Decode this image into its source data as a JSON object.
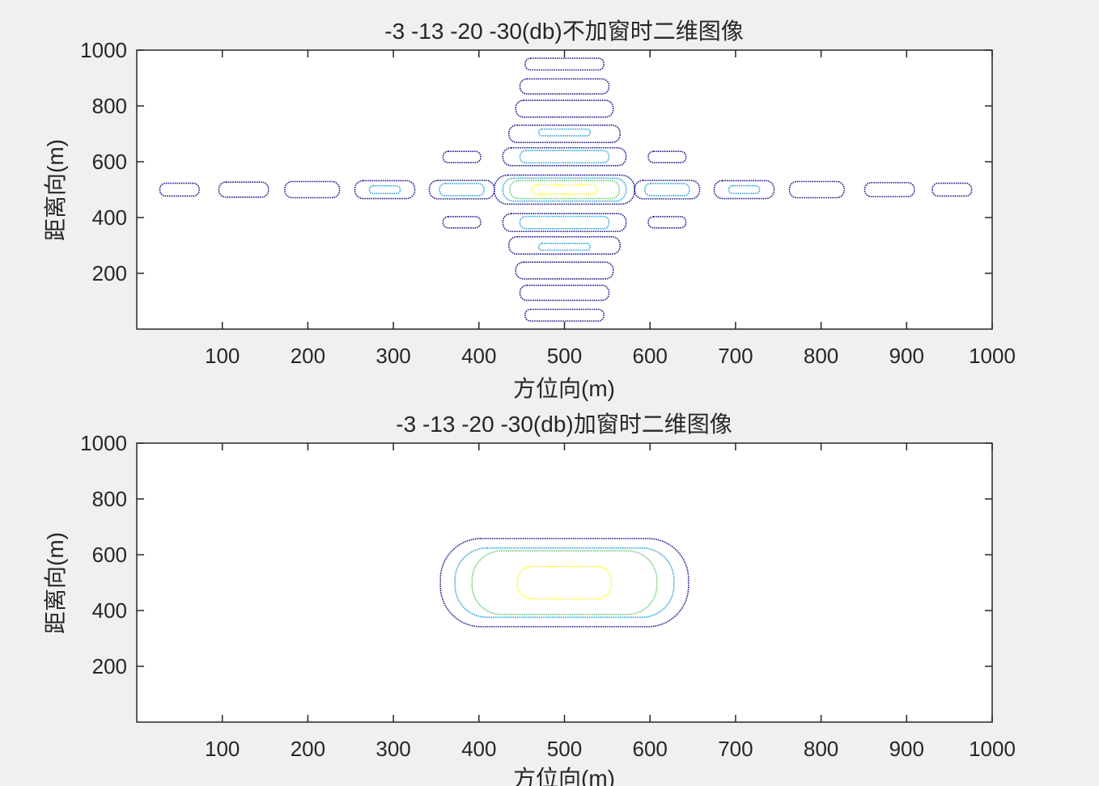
{
  "chart_data": [
    {
      "type": "contour",
      "title": "-3 -13 -20 -30(db)不加窗时二维图像",
      "xlabel": "方位向(m)",
      "ylabel": "距离向(m)",
      "xlim": [
        0,
        1000
      ],
      "ylim": [
        0,
        1000
      ],
      "xticks": [
        "100",
        "200",
        "300",
        "400",
        "500",
        "600",
        "700",
        "800",
        "900",
        "1000"
      ],
      "yticks": [
        "200",
        "400",
        "600",
        "800",
        "1000"
      ],
      "levels": [
        {
          "name": "-30",
          "color": "#1f1d8f"
        },
        {
          "name": "-20",
          "color": "#2ea4de"
        },
        {
          "name": "-13",
          "color": "#6ccb7a"
        },
        {
          "name": "-3",
          "color": "#fafa2a"
        }
      ],
      "contours": [
        {
          "cx": 500,
          "cy": 500,
          "rx": 82,
          "ry": 52,
          "level": 0
        },
        {
          "cx": 500,
          "cy": 500,
          "rx": 72,
          "ry": 41,
          "level": 1
        },
        {
          "cx": 500,
          "cy": 500,
          "rx": 64,
          "ry": 32,
          "level": 2
        },
        {
          "cx": 500,
          "cy": 500,
          "rx": 38,
          "ry": 16,
          "level": 3
        },
        {
          "cx": 620,
          "cy": 500,
          "rx": 38,
          "ry": 33,
          "level": 0
        },
        {
          "cx": 380,
          "cy": 500,
          "rx": 38,
          "ry": 33,
          "level": 0
        },
        {
          "cx": 620,
          "cy": 500,
          "rx": 26,
          "ry": 22,
          "level": 1
        },
        {
          "cx": 380,
          "cy": 500,
          "rx": 26,
          "ry": 22,
          "level": 1
        },
        {
          "cx": 710,
          "cy": 500,
          "rx": 35,
          "ry": 32,
          "level": 0
        },
        {
          "cx": 290,
          "cy": 500,
          "rx": 35,
          "ry": 32,
          "level": 0
        },
        {
          "cx": 710,
          "cy": 500,
          "rx": 18,
          "ry": 14,
          "level": 1
        },
        {
          "cx": 290,
          "cy": 500,
          "rx": 18,
          "ry": 14,
          "level": 1
        },
        {
          "cx": 795,
          "cy": 500,
          "rx": 32,
          "ry": 29,
          "level": 0
        },
        {
          "cx": 205,
          "cy": 500,
          "rx": 32,
          "ry": 29,
          "level": 0
        },
        {
          "cx": 880,
          "cy": 500,
          "rx": 29,
          "ry": 25,
          "level": 0
        },
        {
          "cx": 125,
          "cy": 500,
          "rx": 29,
          "ry": 27,
          "level": 0
        },
        {
          "cx": 953,
          "cy": 500,
          "rx": 23,
          "ry": 23,
          "level": 0
        },
        {
          "cx": 50,
          "cy": 500,
          "rx": 23,
          "ry": 23,
          "level": 0
        },
        {
          "cx": 500,
          "cy": 618,
          "rx": 72,
          "ry": 32,
          "level": 0
        },
        {
          "cx": 500,
          "cy": 382,
          "rx": 72,
          "ry": 32,
          "level": 0
        },
        {
          "cx": 500,
          "cy": 618,
          "rx": 52,
          "ry": 22,
          "level": 1
        },
        {
          "cx": 500,
          "cy": 382,
          "rx": 52,
          "ry": 22,
          "level": 1
        },
        {
          "cx": 500,
          "cy": 700,
          "rx": 65,
          "ry": 31,
          "level": 0
        },
        {
          "cx": 500,
          "cy": 300,
          "rx": 65,
          "ry": 31,
          "level": 0
        },
        {
          "cx": 500,
          "cy": 705,
          "rx": 30,
          "ry": 12,
          "level": 1
        },
        {
          "cx": 500,
          "cy": 295,
          "rx": 30,
          "ry": 12,
          "level": 1
        },
        {
          "cx": 500,
          "cy": 790,
          "rx": 57,
          "ry": 30,
          "level": 0
        },
        {
          "cx": 500,
          "cy": 210,
          "rx": 57,
          "ry": 30,
          "level": 0
        },
        {
          "cx": 500,
          "cy": 870,
          "rx": 52,
          "ry": 27,
          "level": 0
        },
        {
          "cx": 500,
          "cy": 130,
          "rx": 52,
          "ry": 27,
          "level": 0
        },
        {
          "cx": 500,
          "cy": 950,
          "rx": 46,
          "ry": 21,
          "level": 0
        },
        {
          "cx": 500,
          "cy": 50,
          "rx": 46,
          "ry": 21,
          "level": 0
        },
        {
          "cx": 620,
          "cy": 617,
          "rx": 22,
          "ry": 20,
          "level": 0
        },
        {
          "cx": 380,
          "cy": 617,
          "rx": 22,
          "ry": 20,
          "level": 0
        },
        {
          "cx": 620,
          "cy": 383,
          "rx": 22,
          "ry": 20,
          "level": 0
        },
        {
          "cx": 380,
          "cy": 383,
          "rx": 22,
          "ry": 20,
          "level": 0
        }
      ]
    },
    {
      "type": "contour",
      "title": "-3 -13 -20 -30(db)加窗时二维图像",
      "xlabel": "方位向(m)",
      "ylabel": "距离向(m)",
      "xlim": [
        0,
        1000
      ],
      "ylim": [
        0,
        1000
      ],
      "xticks": [
        "100",
        "200",
        "300",
        "400",
        "500",
        "600",
        "700",
        "800",
        "900",
        "1000"
      ],
      "yticks": [
        "200",
        "400",
        "600",
        "800",
        "1000"
      ],
      "levels": [
        {
          "name": "-30",
          "color": "#1f1d8f"
        },
        {
          "name": "-20",
          "color": "#2ea4de"
        },
        {
          "name": "-13",
          "color": "#6ccb7a"
        },
        {
          "name": "-3",
          "color": "#fafa2a"
        }
      ],
      "contours": [
        {
          "cx": 500,
          "cy": 500,
          "rx": 145,
          "ry": 158,
          "level": 0
        },
        {
          "cx": 500,
          "cy": 500,
          "rx": 128,
          "ry": 124,
          "level": 1
        },
        {
          "cx": 500,
          "cy": 500,
          "rx": 108,
          "ry": 114,
          "level": 2
        },
        {
          "cx": 500,
          "cy": 500,
          "rx": 55,
          "ry": 58,
          "level": 3
        }
      ]
    }
  ]
}
